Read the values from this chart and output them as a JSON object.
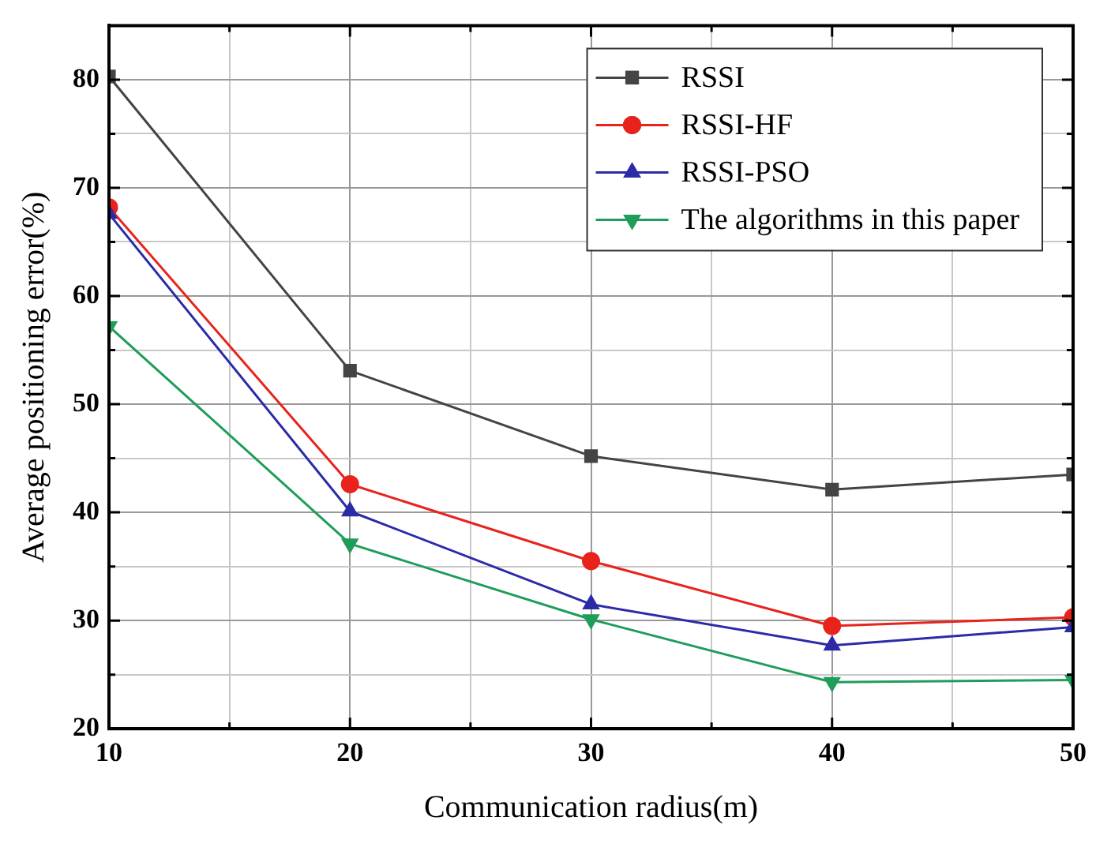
{
  "chart_data": {
    "type": "line",
    "xlabel": "Communication radius(m)",
    "ylabel": "Average positioning error(%)",
    "x": [
      10,
      20,
      30,
      40,
      50
    ],
    "series": [
      {
        "name": "RSSI",
        "color": "#444444",
        "marker": "square",
        "values": [
          80.3,
          53.1,
          45.2,
          42.1,
          43.5
        ]
      },
      {
        "name": "RSSI-HF",
        "color": "#e8231c",
        "marker": "circle",
        "values": [
          68.2,
          42.6,
          35.5,
          29.5,
          30.3
        ]
      },
      {
        "name": "RSSI-PSO",
        "color": "#2b2ba8",
        "marker": "triangle",
        "values": [
          67.6,
          40.1,
          31.5,
          27.7,
          29.4
        ]
      },
      {
        "name": "The algorithms in this paper",
        "color": "#1f9d5a",
        "marker": "triangle-down",
        "values": [
          57.2,
          37.1,
          30.1,
          24.3,
          24.5
        ]
      }
    ],
    "xlim": [
      10,
      50
    ],
    "xticks": [
      10,
      {
        "value": 15,
        "label": null
      },
      20,
      {
        "value": 25,
        "label": null
      },
      30,
      {
        "value": 35,
        "label": null
      },
      40,
      {
        "value": 45,
        "label": null
      },
      50
    ],
    "ylim": [
      20,
      85
    ],
    "yticks": [
      20,
      {
        "value": 25,
        "label": null
      },
      30,
      {
        "value": 35,
        "label": null
      },
      40,
      {
        "value": 45,
        "label": null
      },
      50,
      {
        "value": 55,
        "label": null
      },
      60,
      {
        "value": 65,
        "label": null
      },
      70,
      {
        "value": 75,
        "label": null
      },
      80
    ],
    "grid": true,
    "legend": "top right",
    "line_style": "solid"
  }
}
